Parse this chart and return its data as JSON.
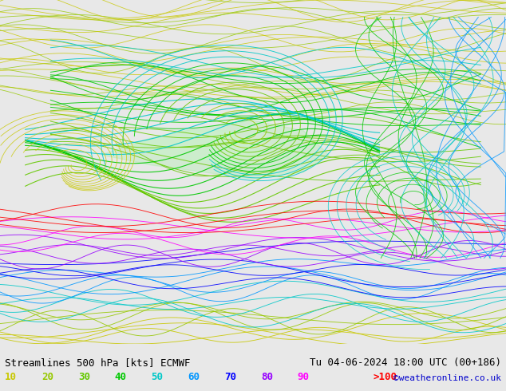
{
  "title_left": "Streamlines 500 hPa [kts] ECMWF",
  "title_right": "Tu 04-06-2024 18:00 UTC (00+186)",
  "watermark": "©weatheronline.co.uk",
  "legend_values": [
    "10",
    "20",
    "30",
    "40",
    "50",
    "60",
    "70",
    "80",
    "90",
    ">100"
  ],
  "legend_colors": [
    "#c8c800",
    "#96c800",
    "#64c800",
    "#00c800",
    "#00c8c8",
    "#0096ff",
    "#0000ff",
    "#9600ff",
    "#ff00ff",
    "#ff0000"
  ],
  "bg_color": "#e8e8e8",
  "fig_width": 6.34,
  "fig_height": 4.9,
  "dpi": 100,
  "bottom_bar_color": "#ffffff",
  "title_fontsize": 9,
  "legend_fontsize": 9,
  "watermark_color": "#0000cc",
  "watermark_fontsize": 8
}
